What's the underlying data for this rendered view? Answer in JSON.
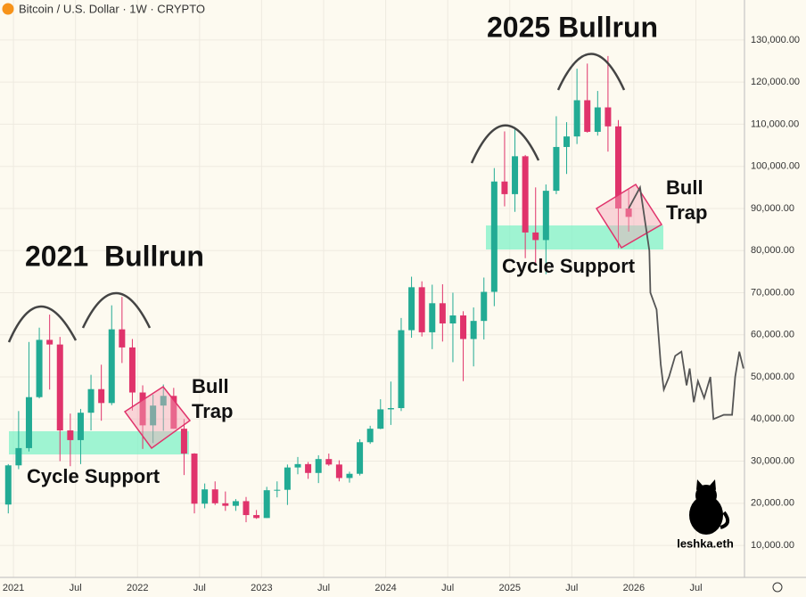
{
  "chart_data": {
    "type": "candlestick",
    "title": "Bitcoin / U.S. Dollar · 1W · CRYPTO",
    "up_color": "#22ab94",
    "down_color": "#e0336b",
    "grid": true,
    "x": [
      -0.5,
      0.5,
      1.5,
      2.5,
      3.5,
      4.5,
      5.5,
      6.5,
      7.5,
      8.5,
      9.5,
      10.5,
      11.5,
      12.5,
      13.5,
      14.5,
      15.5,
      16.5,
      17.5,
      18.5,
      19.5,
      20.5,
      21.5,
      22.5,
      23.5,
      24.5,
      25.5,
      26.5,
      27.5,
      28.5,
      29.5,
      30.5,
      31.5,
      32.5,
      33.5,
      34.5,
      35.5,
      36.5,
      37.5,
      38.5,
      39.5,
      40.5,
      41.5,
      42.5,
      43.5,
      44.5,
      45.5,
      46.5,
      47.5,
      48.5,
      49.5,
      50.5,
      51.5,
      52.5,
      53.5,
      54.5,
      55.5,
      56.5,
      57.5,
      58.5,
      59.5
    ],
    "open": [
      19700,
      29000,
      33100,
      45200,
      58800,
      57700,
      37300,
      35000,
      41500,
      47100,
      43800,
      61300,
      57000,
      46300,
      38500,
      43200,
      45500,
      37700,
      31800,
      19900,
      23300,
      20000,
      19400,
      20500,
      17200,
      16500,
      23100,
      23200,
      28500,
      29300,
      27200,
      30500,
      29200,
      26000,
      27000,
      34500,
      37700,
      42300,
      42600,
      61100,
      71300,
      60600,
      67500,
      62700,
      64600,
      59000,
      63300,
      70200,
      96400,
      93400,
      102400,
      84300,
      82500,
      94200,
      104600,
      107100,
      115700,
      108200,
      114000,
      109500,
      90000
    ],
    "high": [
      29300,
      41900,
      58300,
      61700,
      64800,
      59500,
      41300,
      42400,
      50500,
      52900,
      67000,
      69000,
      59000,
      48000,
      45800,
      48200,
      47400,
      40000,
      31900,
      24700,
      25200,
      22800,
      21000,
      21500,
      18400,
      23900,
      25200,
      29200,
      31000,
      29800,
      31400,
      31800,
      30200,
      27500,
      35200,
      38400,
      44700,
      48900,
      64000,
      73800,
      72700,
      71900,
      72000,
      70000,
      65600,
      66500,
      73600,
      99600,
      108300,
      109300,
      102700,
      95000,
      95700,
      111900,
      110500,
      123200,
      124400,
      117900,
      126200,
      111000,
      94500
    ],
    "low": [
      17600,
      28100,
      32300,
      44900,
      47000,
      30000,
      28800,
      29300,
      37300,
      39600,
      43300,
      53300,
      42000,
      32900,
      34300,
      37200,
      37700,
      26700,
      17600,
      18800,
      19600,
      18200,
      18200,
      15500,
      16300,
      16500,
      21400,
      19600,
      26900,
      25800,
      24800,
      28900,
      25200,
      24900,
      26600,
      34100,
      37600,
      38600,
      41900,
      59300,
      59600,
      56600,
      58400,
      53500,
      49000,
      52500,
      58900,
      66800,
      90500,
      89200,
      78200,
      76600,
      74400,
      93400,
      98200,
      105300,
      108000,
      107300,
      103500,
      80600,
      84500
    ],
    "close": [
      29000,
      33100,
      45200,
      58800,
      57700,
      37300,
      35000,
      41500,
      47100,
      43800,
      61300,
      57000,
      46300,
      38500,
      43200,
      45500,
      37700,
      31800,
      19900,
      23300,
      20000,
      19400,
      20500,
      17200,
      16500,
      23100,
      23200,
      28500,
      29300,
      27200,
      30500,
      29200,
      26000,
      27000,
      34500,
      37700,
      42300,
      42600,
      61100,
      71300,
      60600,
      67500,
      62700,
      64600,
      59000,
      63300,
      70200,
      96400,
      93400,
      102400,
      84300,
      82500,
      94200,
      104600,
      107100,
      115700,
      108200,
      114000,
      109500,
      90000,
      88000
    ],
    "projection": {
      "color": "#555555",
      "x": [
        59.5,
        60.6,
        61.5,
        61.6,
        62.2,
        62.6,
        62.9,
        63.4,
        64.0,
        64.6,
        65.1,
        65.4,
        65.8,
        66.2,
        66.8,
        67.4,
        67.7,
        68.7,
        69.5,
        69.8,
        70.2,
        70.6
      ],
      "values": [
        90000,
        95000,
        80000,
        70000,
        66000,
        53000,
        47000,
        50000,
        55000,
        56000,
        48000,
        52000,
        44000,
        49000,
        45000,
        50000,
        40000,
        41000,
        41000,
        50000,
        56000,
        52000
      ]
    },
    "xlim": [
      -1.3,
      70.7
    ],
    "ylim": [
      2400,
      139500
    ],
    "xticks": [
      {
        "value": 0,
        "label": "2021"
      },
      {
        "value": 6,
        "label": "Jul"
      },
      {
        "value": 12,
        "label": "2022"
      },
      {
        "value": 18,
        "label": "Jul"
      },
      {
        "value": 24,
        "label": "2023"
      },
      {
        "value": 30,
        "label": "Jul"
      },
      {
        "value": 36,
        "label": "2024"
      },
      {
        "value": 42,
        "label": "Jul"
      },
      {
        "value": 48,
        "label": "2025"
      },
      {
        "value": 54,
        "label": "Jul"
      },
      {
        "value": 60,
        "label": "2026"
      },
      {
        "value": 66,
        "label": "Jul"
      }
    ],
    "yticks": [
      {
        "value": 10000,
        "label": "10,000.00"
      },
      {
        "value": 20000,
        "label": "20,000.00"
      },
      {
        "value": 30000,
        "label": "30,000.00"
      },
      {
        "value": 40000,
        "label": "40,000.00"
      },
      {
        "value": 50000,
        "label": "50,000.00"
      },
      {
        "value": 60000,
        "label": "60,000.00"
      },
      {
        "value": 70000,
        "label": "70,000.00"
      },
      {
        "value": 80000,
        "label": "80,000.00"
      },
      {
        "value": 90000,
        "label": "90,000.00"
      },
      {
        "value": 100000,
        "label": "100,000.00"
      },
      {
        "value": 110000,
        "label": "110,000.00"
      },
      {
        "value": 120000,
        "label": "120,000.00"
      },
      {
        "value": 130000,
        "label": "130,000.00"
      }
    ],
    "annotations": [
      "2021  Bullrun",
      "2025 Bullrun",
      "Cycle Support",
      "Cycle Support",
      "Bull",
      "Trap",
      "Bull",
      "Trap"
    ],
    "watermark": "leshka.eth"
  }
}
